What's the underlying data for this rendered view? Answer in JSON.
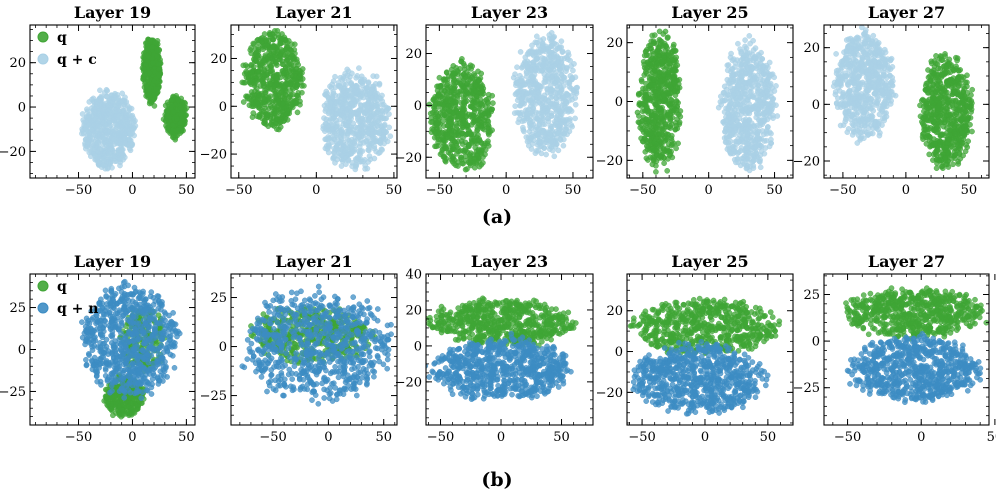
{
  "colors": {
    "q": "#3fa535",
    "q_plus_c": "#a9d0e6",
    "q_plus_n": "#3c8cc3"
  },
  "figure": {
    "caption_a": "(a)",
    "caption_b": "(b)"
  },
  "chart_data": [
    {
      "type": "scatter",
      "title": "Layer 19",
      "row": "a",
      "xticks": [
        -50,
        0,
        50
      ],
      "yticks": [
        -20,
        0,
        20
      ],
      "xlim": [
        -95,
        58
      ],
      "ylim": [
        -32,
        37
      ],
      "legend": [
        "q",
        "q + c"
      ],
      "legend_position": "top-left",
      "clusters": [
        {
          "series": "q",
          "cx": 18,
          "cy": 17,
          "rx": 8,
          "ry": 15,
          "n": 380
        },
        {
          "series": "q",
          "cx": 40,
          "cy": -4,
          "rx": 10,
          "ry": 9,
          "n": 260
        },
        {
          "series": "q + c",
          "cx": -22,
          "cy": -10,
          "rx": 24,
          "ry": 17,
          "n": 600
        }
      ]
    },
    {
      "type": "scatter",
      "title": "Layer 21",
      "row": "a",
      "xticks": [
        -50,
        0,
        50
      ],
      "yticks": [
        -20,
        0,
        20
      ],
      "xlim": [
        -55,
        52
      ],
      "ylim": [
        -30,
        34
      ],
      "clusters": [
        {
          "series": "q",
          "cx": -28,
          "cy": 11,
          "rx": 19,
          "ry": 20,
          "n": 600
        },
        {
          "series": "q + c",
          "cx": 25,
          "cy": -6,
          "rx": 22,
          "ry": 20,
          "n": 620
        }
      ]
    },
    {
      "type": "scatter",
      "title": "Layer 23",
      "row": "a",
      "xticks": [
        -50,
        0,
        50
      ],
      "yticks": [
        -20,
        0,
        20
      ],
      "xlim": [
        -60,
        65
      ],
      "ylim": [
        -28,
        31
      ],
      "clusters": [
        {
          "series": "q",
          "cx": -33,
          "cy": -5,
          "rx": 23,
          "ry": 21,
          "n": 620
        },
        {
          "series": "q + c",
          "cx": 29,
          "cy": 4,
          "rx": 23,
          "ry": 23,
          "n": 620
        }
      ]
    },
    {
      "type": "scatter",
      "title": "Layer 25",
      "row": "a",
      "xticks": [
        -50,
        0,
        50
      ],
      "yticks": [
        -20,
        0,
        20
      ],
      "xlim": [
        -62,
        64
      ],
      "ylim": [
        -26,
        26
      ],
      "clusters": [
        {
          "series": "q",
          "cx": -37,
          "cy": 0,
          "rx": 16,
          "ry": 23,
          "n": 600
        },
        {
          "series": "q + c",
          "cx": 30,
          "cy": -2,
          "rx": 21,
          "ry": 21,
          "n": 620
        }
      ]
    },
    {
      "type": "scatter",
      "title": "Layer 27",
      "row": "a",
      "xticks": [
        -50,
        0,
        50
      ],
      "yticks": [
        -20,
        0,
        20
      ],
      "xlim": [
        -65,
        66
      ],
      "ylim": [
        -26,
        28
      ],
      "clusters": [
        {
          "series": "q + c",
          "cx": -33,
          "cy": 7,
          "rx": 24,
          "ry": 19,
          "n": 600
        },
        {
          "series": "q",
          "cx": 32,
          "cy": -3,
          "rx": 21,
          "ry": 20,
          "n": 620
        }
      ]
    },
    {
      "type": "scatter",
      "title": "Layer 19",
      "row": "b",
      "xticks": [
        -50,
        0,
        50
      ],
      "yticks": [
        -25,
        0,
        25
      ],
      "xlim": [
        -95,
        58
      ],
      "ylim": [
        -45,
        45
      ],
      "legend": [
        "q",
        "q + n"
      ],
      "legend_position": "top-left",
      "clusters": [
        {
          "series": "q",
          "cx": -8,
          "cy": -28,
          "rx": 18,
          "ry": 12,
          "n": 320
        },
        {
          "series": "q",
          "cx": 10,
          "cy": 5,
          "rx": 20,
          "ry": 20,
          "n": 200
        },
        {
          "series": "q + n",
          "cx": -3,
          "cy": 5,
          "rx": 44,
          "ry": 33,
          "n": 700
        }
      ]
    },
    {
      "type": "scatter",
      "title": "Layer 21",
      "row": "b",
      "xticks": [
        -50,
        0,
        50
      ],
      "yticks": [
        -25,
        0,
        25
      ],
      "xlim": [
        -88,
        62
      ],
      "ylim": [
        -40,
        37
      ],
      "clusters": [
        {
          "series": "q",
          "cx": -15,
          "cy": 6,
          "rx": 55,
          "ry": 14,
          "n": 420
        },
        {
          "series": "q + n",
          "cx": -10,
          "cy": 0,
          "rx": 68,
          "ry": 28,
          "n": 700
        }
      ]
    },
    {
      "type": "scatter",
      "title": "Layer 23",
      "row": "b",
      "xticks": [
        -50,
        0,
        50
      ],
      "yticks": [
        -20,
        0,
        20,
        40
      ],
      "xlim": [
        -62,
        76
      ],
      "ylim": [
        -44,
        40
      ],
      "clusters": [
        {
          "series": "q",
          "cx": 0,
          "cy": 13,
          "rx": 58,
          "ry": 13,
          "n": 600
        },
        {
          "series": "q + n",
          "cx": 0,
          "cy": -13,
          "rx": 58,
          "ry": 17,
          "n": 700
        }
      ]
    },
    {
      "type": "scatter",
      "title": "Layer 25",
      "row": "b",
      "xticks": [
        -50,
        0,
        50
      ],
      "yticks": [
        -20,
        0,
        20
      ],
      "xlim": [
        -62,
        70
      ],
      "ylim": [
        -36,
        38
      ],
      "clusters": [
        {
          "series": "q",
          "cx": 0,
          "cy": 12,
          "rx": 58,
          "ry": 13,
          "n": 600
        },
        {
          "series": "q + n",
          "cx": -5,
          "cy": -13,
          "rx": 52,
          "ry": 17,
          "n": 700
        }
      ]
    },
    {
      "type": "scatter",
      "title": "Layer 27",
      "row": "b",
      "xticks": [
        -50,
        0,
        50
      ],
      "yticks": [
        -25,
        0,
        25
      ],
      "xlim": [
        -66,
        46
      ],
      "ylim": [
        -45,
        36
      ],
      "clusters": [
        {
          "series": "q",
          "cx": -5,
          "cy": 15,
          "rx": 46,
          "ry": 13,
          "n": 600
        },
        {
          "series": "q + n",
          "cx": -5,
          "cy": -15,
          "rx": 44,
          "ry": 17,
          "n": 700
        }
      ]
    }
  ]
}
